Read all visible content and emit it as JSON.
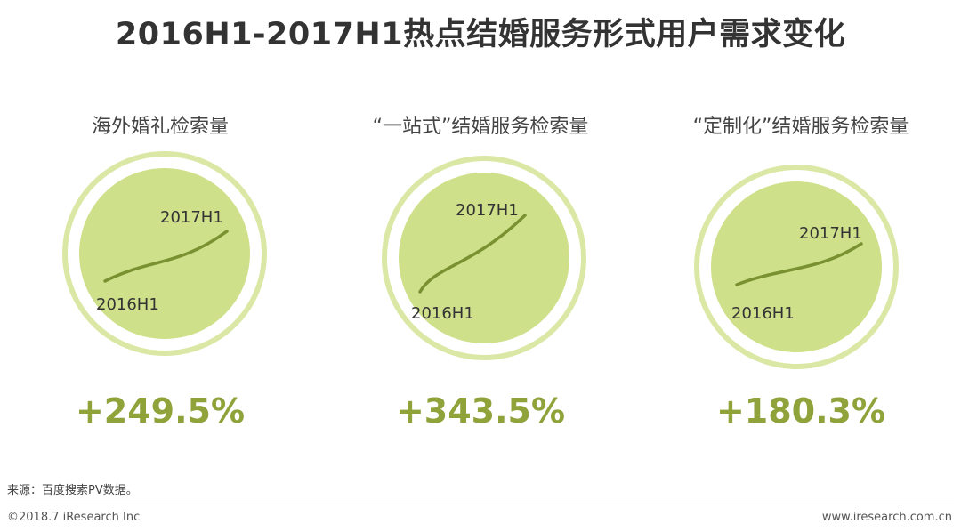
{
  "title": "2016H1-2017H1热点结婚服务形式用户需求变化",
  "colors": {
    "accent": "#8fa33a",
    "circle_fill": "#cfe08a",
    "ring_outer": "#dbe8a5",
    "curve": "#7a9131"
  },
  "chart_data": [
    {
      "type": "line",
      "title": "海外婚礼检索量",
      "start_label": "2016H1",
      "end_label": "2017H1",
      "growth": "+249.5%",
      "growth_value": 249.5
    },
    {
      "type": "line",
      "title": "“一站式”结婚服务检索量",
      "start_label": "2016H1",
      "end_label": "2017H1",
      "growth": "+343.5%",
      "growth_value": 343.5
    },
    {
      "type": "line",
      "title": "“定制化”结婚服务检索量",
      "start_label": "2016H1",
      "end_label": "2017H1",
      "growth": "+180.3%",
      "growth_value": 180.3
    }
  ],
  "footer": {
    "source": "来源：百度搜索PV数据。",
    "copyright": "©2018.7 iResearch Inc",
    "url": "www.iresearch.com.cn"
  }
}
